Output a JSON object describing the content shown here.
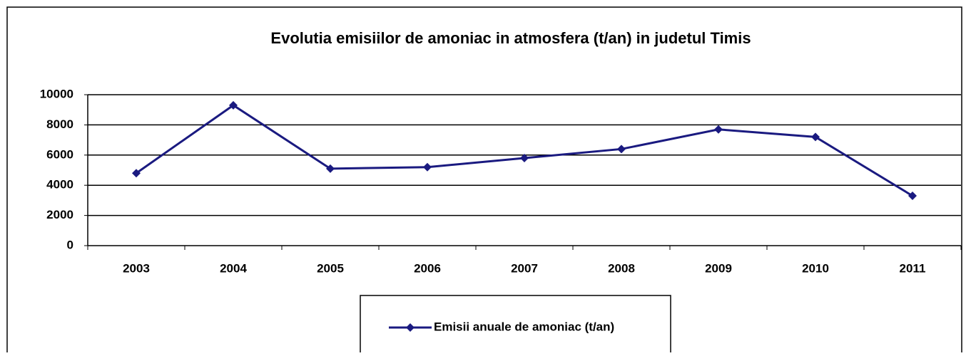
{
  "chart_data": {
    "type": "line",
    "title": "Evolutia emisiilor de amoniac in atmosfera (t/an) in judetul Timis",
    "categories": [
      "2003",
      "2004",
      "2005",
      "2006",
      "2007",
      "2008",
      "2009",
      "2010",
      "2011"
    ],
    "series": [
      {
        "name": "Emisii anuale de amoniac (t/an)",
        "color": "#1a1a80",
        "values": [
          4800,
          9300,
          5100,
          5200,
          5800,
          6400,
          7700,
          7200,
          3300
        ]
      }
    ],
    "ylim": [
      0,
      10000
    ],
    "yticks": [
      0,
      2000,
      4000,
      6000,
      8000,
      10000
    ],
    "grid": true,
    "legend": "bottom"
  }
}
